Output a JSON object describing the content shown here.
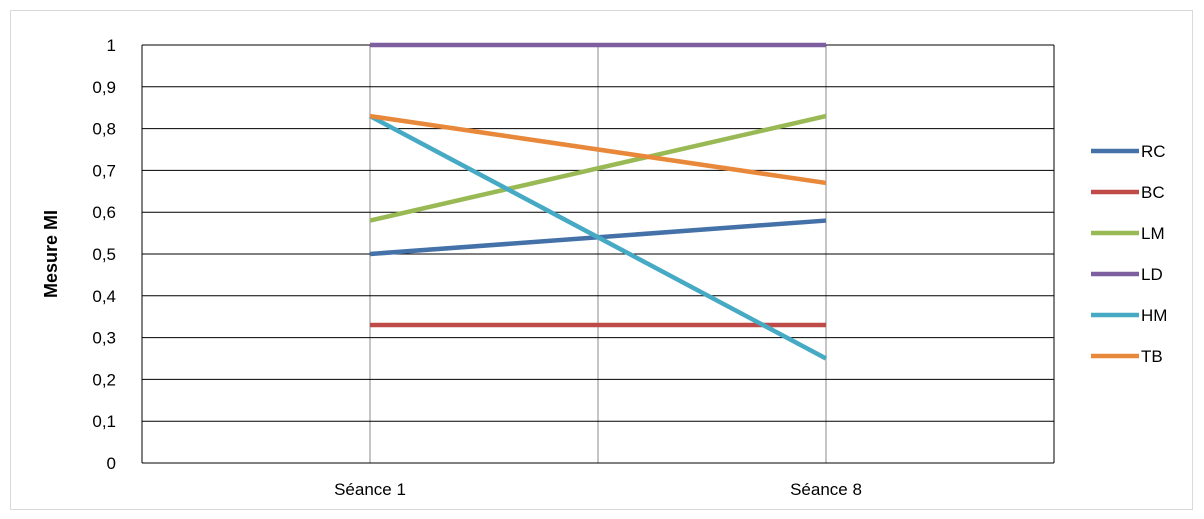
{
  "chart_data": {
    "type": "line",
    "title": "",
    "xlabel": "",
    "ylabel": "Mesure MI",
    "categories": [
      "Séance 1",
      "Séance 8"
    ],
    "ylim": [
      0,
      1
    ],
    "yticks": [
      "0",
      "0,1",
      "0,2",
      "0,3",
      "0,4",
      "0,5",
      "0,6",
      "0,7",
      "0,8",
      "0,9",
      "1"
    ],
    "grid": true,
    "legend_position": "right",
    "series": [
      {
        "name": "RC",
        "values": [
          0.5,
          0.58
        ],
        "color": "#4472A8"
      },
      {
        "name": "BC",
        "values": [
          0.33,
          0.33
        ],
        "color": "#BE4B48"
      },
      {
        "name": "LM",
        "values": [
          0.58,
          0.83
        ],
        "color": "#98B954"
      },
      {
        "name": "LD",
        "values": [
          1.0,
          1.0
        ],
        "color": "#7D5FA0"
      },
      {
        "name": "HM",
        "values": [
          0.83,
          0.25
        ],
        "color": "#46AAC5"
      },
      {
        "name": "TB",
        "values": [
          0.83,
          0.67
        ],
        "color": "#E8883A"
      }
    ]
  }
}
